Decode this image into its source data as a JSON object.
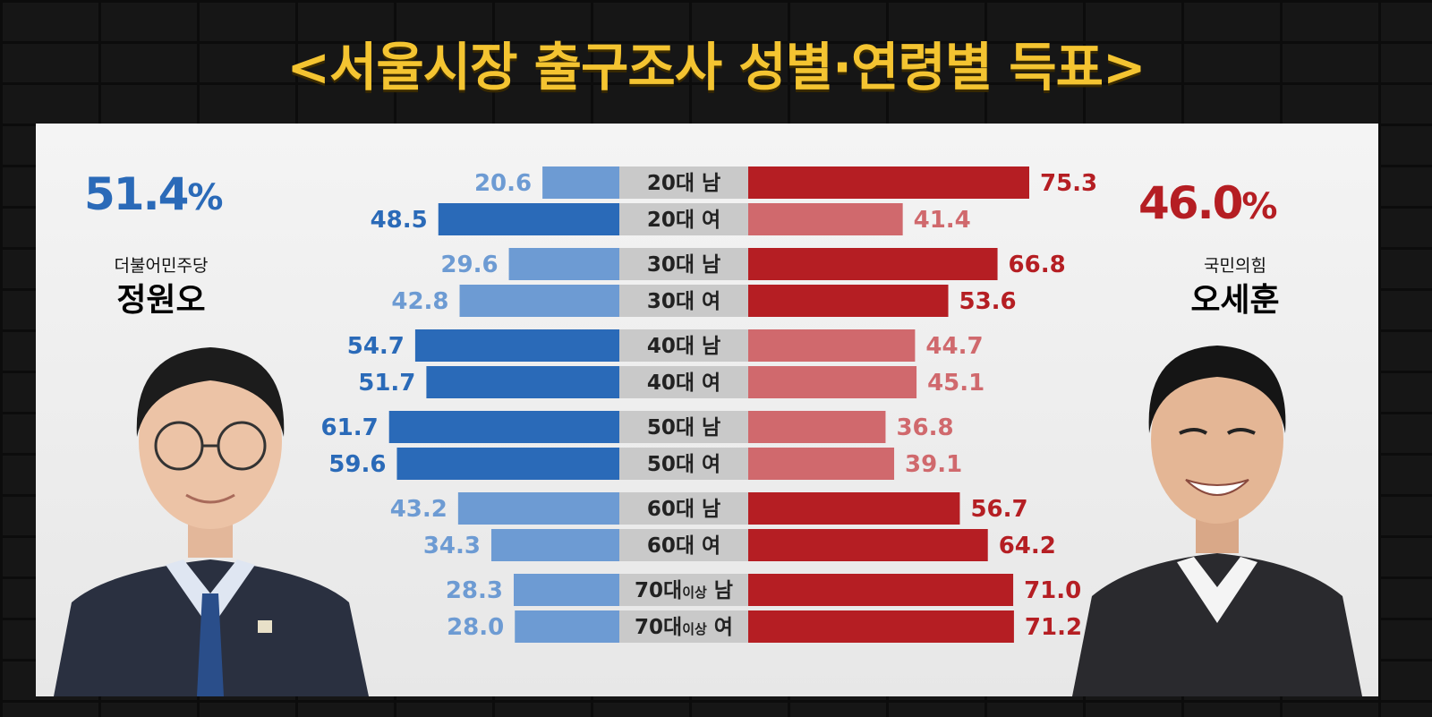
{
  "title": "<서울시장 출구조사 성별·연령별 득표>",
  "candidates": {
    "left": {
      "pct": "51.4",
      "pct_symbol": "%",
      "party": "더불어민주당",
      "name": "정원오",
      "color": "#2a6ab8"
    },
    "right": {
      "pct": "46.0",
      "pct_symbol": "%",
      "party": "국민의힘",
      "name": "오세훈",
      "color": "#b51e23"
    }
  },
  "chart_data": {
    "type": "bar",
    "orientation": "horizontal-diverging",
    "categories": [
      "20대 남",
      "20대 여",
      "30대 남",
      "30대 여",
      "40대 남",
      "40대 여",
      "50대 남",
      "50대 여",
      "60대 남",
      "60대 여",
      "70대이상 남",
      "70대이상 여"
    ],
    "series": [
      {
        "name": "정원오",
        "values": [
          20.6,
          48.5,
          29.6,
          42.8,
          54.7,
          51.7,
          61.7,
          59.6,
          43.2,
          34.3,
          28.3,
          28.0
        ]
      },
      {
        "name": "오세훈",
        "values": [
          75.3,
          41.4,
          66.8,
          53.6,
          44.7,
          45.1,
          36.8,
          39.1,
          56.7,
          64.2,
          71.0,
          71.2
        ]
      }
    ],
    "leading": [
      "right",
      "left",
      "right",
      "right",
      "left",
      "left",
      "left",
      "left",
      "right",
      "right",
      "right",
      "right"
    ],
    "colors": {
      "left_strong": "#2a6ab8",
      "left_light": "#6d9bd3",
      "right_strong": "#b51e23",
      "right_light": "#d0696d",
      "label_bg": "#c9c9c9"
    }
  }
}
